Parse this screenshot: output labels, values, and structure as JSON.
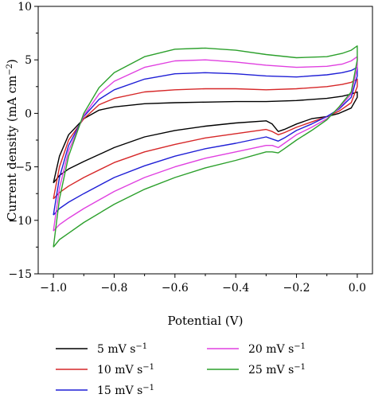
{
  "chart_data": {
    "type": "line",
    "xlabel": "Potential (V)",
    "ylabel": "Current density (mA cm",
    "ylabel_sup": "−2",
    "ylabel_end": ")",
    "xlim": [
      -1.05,
      0.05
    ],
    "ylim": [
      -15,
      10
    ],
    "xticks": [
      -1.0,
      -0.8,
      -0.6,
      -0.4,
      -0.2,
      0.0
    ],
    "xtick_labels": [
      "−1.0",
      "−0.8",
      "−0.6",
      "−0.4",
      "−0.2",
      "0.0"
    ],
    "yticks": [
      -15,
      -10,
      -5,
      0,
      5,
      10
    ],
    "ytick_labels": [
      "−15",
      "−10",
      "−5",
      "0",
      "5",
      "10"
    ],
    "grid": false,
    "legend_position": "bottom",
    "series": [
      {
        "name": "5 mV s",
        "name_sup": "−1",
        "color": "#000000",
        "x": [
          -1.0,
          -0.98,
          -0.95,
          -0.9,
          -0.85,
          -0.8,
          -0.7,
          -0.6,
          -0.5,
          -0.4,
          -0.3,
          -0.2,
          -0.1,
          -0.05,
          -0.02,
          0.0,
          0.0,
          -0.02,
          -0.06,
          -0.1,
          -0.15,
          -0.2,
          -0.24,
          -0.26,
          -0.28,
          -0.3,
          -0.4,
          -0.5,
          -0.6,
          -0.7,
          -0.8,
          -0.9,
          -0.95,
          -0.98,
          -1.0
        ],
        "y": [
          -6.5,
          -4.0,
          -2.0,
          -0.5,
          0.3,
          0.6,
          0.9,
          1.0,
          1.05,
          1.1,
          1.1,
          1.2,
          1.4,
          1.6,
          1.8,
          2.0,
          1.5,
          0.5,
          0.0,
          -0.3,
          -0.5,
          -1.0,
          -1.5,
          -1.7,
          -1.0,
          -0.7,
          -0.9,
          -1.2,
          -1.6,
          -2.2,
          -3.2,
          -4.5,
          -5.2,
          -5.8,
          -6.5
        ]
      },
      {
        "name": "10 mV s",
        "name_sup": "−1",
        "color": "#d62728",
        "x": [
          -1.0,
          -0.98,
          -0.95,
          -0.9,
          -0.85,
          -0.8,
          -0.7,
          -0.6,
          -0.5,
          -0.4,
          -0.3,
          -0.2,
          -0.1,
          -0.05,
          -0.02,
          0.0,
          0.0,
          -0.02,
          -0.06,
          -0.1,
          -0.15,
          -0.2,
          -0.24,
          -0.26,
          -0.28,
          -0.3,
          -0.4,
          -0.5,
          -0.6,
          -0.7,
          -0.8,
          -0.9,
          -0.95,
          -0.98,
          -1.0
        ],
        "y": [
          -8.0,
          -5.0,
          -2.5,
          -0.5,
          0.8,
          1.4,
          2.0,
          2.2,
          2.3,
          2.3,
          2.2,
          2.3,
          2.5,
          2.7,
          2.9,
          3.2,
          2.5,
          1.0,
          0.2,
          -0.3,
          -0.8,
          -1.3,
          -1.8,
          -2.0,
          -1.7,
          -1.5,
          -1.9,
          -2.3,
          -2.9,
          -3.6,
          -4.6,
          -6.0,
          -6.8,
          -7.4,
          -8.0
        ]
      },
      {
        "name": "15 mV s",
        "name_sup": "−1",
        "color": "#1f1fd6",
        "x": [
          -1.0,
          -0.98,
          -0.95,
          -0.9,
          -0.85,
          -0.8,
          -0.7,
          -0.6,
          -0.5,
          -0.4,
          -0.3,
          -0.2,
          -0.1,
          -0.05,
          -0.02,
          0.0,
          0.0,
          -0.02,
          -0.06,
          -0.1,
          -0.15,
          -0.2,
          -0.24,
          -0.26,
          -0.28,
          -0.3,
          -0.4,
          -0.5,
          -0.6,
          -0.7,
          -0.8,
          -0.9,
          -0.95,
          -0.98,
          -1.0
        ],
        "y": [
          -9.5,
          -6.0,
          -3.0,
          -0.3,
          1.3,
          2.2,
          3.2,
          3.7,
          3.8,
          3.7,
          3.5,
          3.4,
          3.6,
          3.8,
          4.0,
          4.3,
          3.5,
          1.5,
          0.4,
          -0.3,
          -1.0,
          -1.6,
          -2.3,
          -2.6,
          -2.4,
          -2.2,
          -2.8,
          -3.3,
          -4.0,
          -4.9,
          -6.0,
          -7.5,
          -8.3,
          -8.9,
          -9.5
        ]
      },
      {
        "name": "20 mV s",
        "name_sup": "−1",
        "color": "#e040e0",
        "x": [
          -1.0,
          -0.98,
          -0.95,
          -0.9,
          -0.85,
          -0.8,
          -0.7,
          -0.6,
          -0.5,
          -0.4,
          -0.3,
          -0.2,
          -0.1,
          -0.05,
          -0.02,
          0.0,
          0.0,
          -0.02,
          -0.06,
          -0.1,
          -0.15,
          -0.2,
          -0.24,
          -0.26,
          -0.28,
          -0.3,
          -0.4,
          -0.5,
          -0.6,
          -0.7,
          -0.8,
          -0.9,
          -0.95,
          -0.98,
          -1.0
        ],
        "y": [
          -11.0,
          -7.0,
          -3.5,
          -0.2,
          1.8,
          3.0,
          4.3,
          4.9,
          5.0,
          4.8,
          4.5,
          4.3,
          4.4,
          4.6,
          4.9,
          5.3,
          4.3,
          1.8,
          0.5,
          -0.5,
          -1.3,
          -2.0,
          -2.8,
          -3.2,
          -3.0,
          -3.0,
          -3.6,
          -4.2,
          -5.0,
          -6.0,
          -7.3,
          -8.9,
          -9.8,
          -10.4,
          -11.0
        ]
      },
      {
        "name": "25 mV s",
        "name_sup": "−1",
        "color": "#2ca02c",
        "x": [
          -1.0,
          -0.98,
          -0.95,
          -0.9,
          -0.85,
          -0.8,
          -0.7,
          -0.6,
          -0.5,
          -0.4,
          -0.3,
          -0.2,
          -0.1,
          -0.05,
          -0.02,
          0.0,
          0.0,
          -0.02,
          -0.06,
          -0.1,
          -0.15,
          -0.2,
          -0.24,
          -0.26,
          -0.28,
          -0.3,
          -0.4,
          -0.5,
          -0.6,
          -0.7,
          -0.8,
          -0.9,
          -0.95,
          -0.98,
          -1.0
        ],
        "y": [
          -12.5,
          -8.0,
          -4.0,
          0.0,
          2.4,
          3.8,
          5.3,
          6.0,
          6.1,
          5.9,
          5.5,
          5.2,
          5.3,
          5.6,
          5.9,
          6.3,
          5.0,
          2.0,
          0.6,
          -0.6,
          -1.6,
          -2.5,
          -3.3,
          -3.7,
          -3.6,
          -3.6,
          -4.4,
          -5.1,
          -6.0,
          -7.1,
          -8.5,
          -10.2,
          -11.2,
          -11.8,
          -12.5
        ]
      }
    ]
  }
}
